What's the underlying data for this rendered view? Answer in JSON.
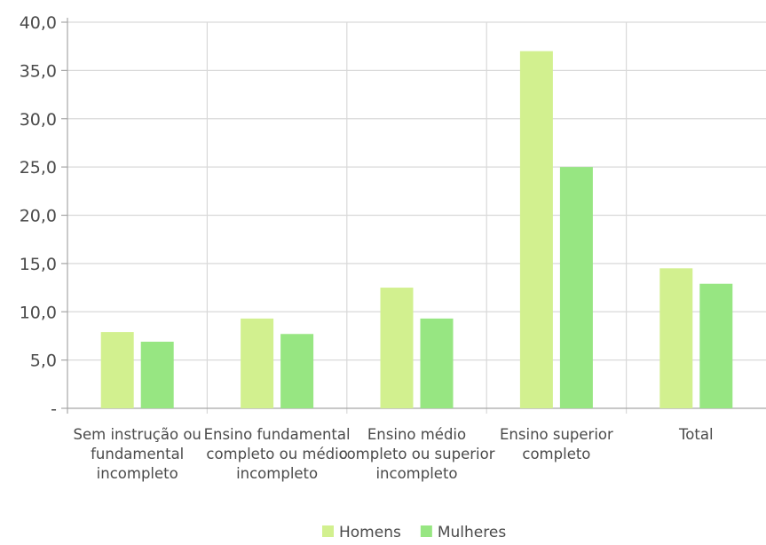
{
  "chart_data": {
    "type": "bar",
    "categories": [
      [
        "Sem instrução ou",
        "fundamental",
        "incompleto"
      ],
      [
        "Ensino fundamental",
        "completo ou médio",
        "incompleto"
      ],
      [
        "Ensino médio",
        "completo ou superior",
        "incompleto"
      ],
      [
        "Ensino superior",
        "completo"
      ],
      [
        "Total"
      ]
    ],
    "series": [
      {
        "name": "Homens",
        "color": "#d2f08f",
        "values": [
          7.9,
          9.3,
          12.5,
          37.0,
          14.5
        ]
      },
      {
        "name": "Mulheres",
        "color": "#97e682",
        "values": [
          6.9,
          7.7,
          9.3,
          25.0,
          12.9
        ]
      }
    ],
    "ylim": [
      0,
      40
    ],
    "ytick_values": [
      0,
      5,
      10,
      15,
      20,
      25,
      30,
      35,
      40
    ],
    "ytick_labels": [
      "-",
      "5,0",
      "10,0",
      "15,0",
      "20,0",
      "25,0",
      "30,0",
      "35,0",
      "40,0"
    ],
    "grid": true,
    "legend_position": "bottom-center",
    "title": "",
    "xlabel": "",
    "ylabel": ""
  }
}
